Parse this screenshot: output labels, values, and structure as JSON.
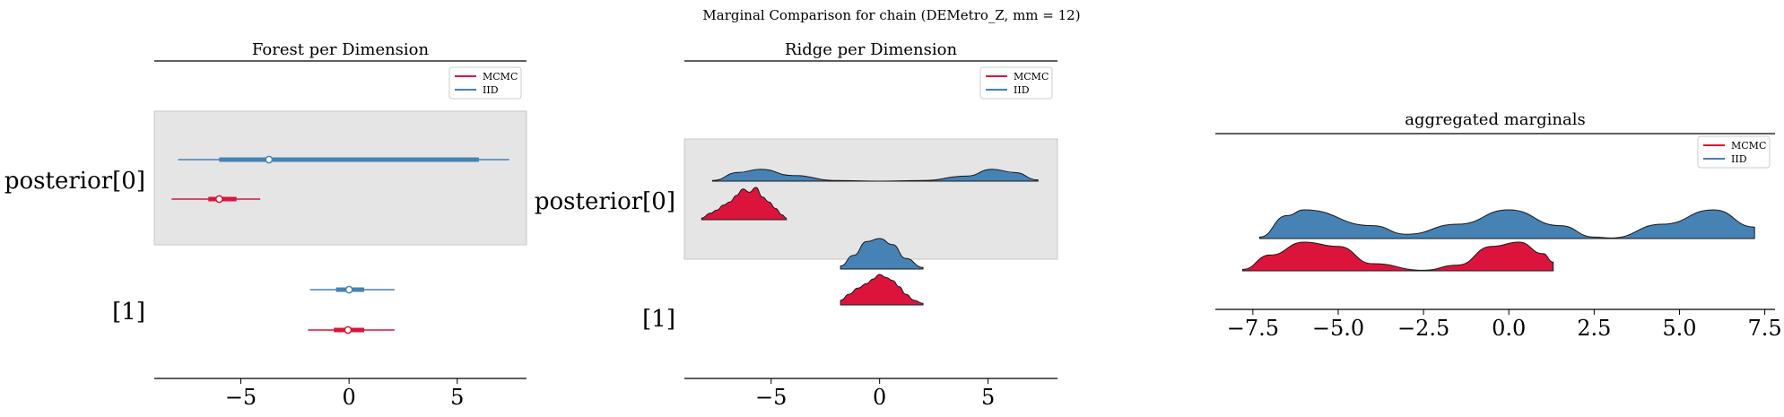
{
  "suptitle": "Marginal Comparison for chain (DEMetro_Z, mm = 12)",
  "colors": {
    "mcmc": "#dc143c",
    "iid": "#4682b4",
    "band": "#e5e5e5",
    "band_edge": "#c8c8c8"
  },
  "legend": [
    {
      "label": "MCMC",
      "color": "#dc143c"
    },
    {
      "label": "IID",
      "color": "#4682b4"
    }
  ],
  "chart_data": [
    {
      "type": "forest",
      "title": "Forest per Dimension",
      "xlim": [
        -9,
        8.2
      ],
      "xticks": [
        -5,
        0,
        5
      ],
      "xtick_labels": [
        "−5",
        "0",
        "5"
      ],
      "row_labels": [
        "posterior[0]",
        "[1]"
      ],
      "legend_position": "upper right",
      "rows": [
        {
          "label": "posterior[0]",
          "shaded": true,
          "series": {
            "IID": {
              "hdi94": [
                -7.9,
                7.4
              ],
              "hdi50": [
                -6.0,
                6.0
              ],
              "point": -3.7
            },
            "MCMC": {
              "hdi94": [
                -8.2,
                -4.1
              ],
              "hdi50": [
                -6.5,
                -5.2
              ],
              "point": -6.0
            }
          }
        },
        {
          "label": "[1]",
          "shaded": false,
          "series": {
            "IID": {
              "hdi94": [
                -1.8,
                2.1
              ],
              "hdi50": [
                -0.6,
                0.7
              ],
              "point": 0.0
            },
            "MCMC": {
              "hdi94": [
                -1.9,
                2.1
              ],
              "hdi50": [
                -0.7,
                0.7
              ],
              "point": -0.05
            }
          }
        }
      ]
    },
    {
      "type": "ridge",
      "title": "Ridge per Dimension",
      "xlim": [
        -9,
        8.2
      ],
      "xticks": [
        -5,
        0,
        5
      ],
      "xtick_labels": [
        "−5",
        "0",
        "5"
      ],
      "row_labels": [
        "posterior[0]",
        "[1]"
      ],
      "legend_position": "upper right",
      "rows": [
        {
          "label": "posterior[0]",
          "shaded": true,
          "series": {
            "IID": {
              "x": [
                -7.7,
                -6.5,
                -5.5,
                -4.0,
                -2.0,
                0.0,
                2.0,
                4.0,
                5.2,
                6.2,
                7.3
              ],
              "density": [
                0.05,
                0.7,
                0.95,
                0.45,
                0.05,
                0.0,
                0.05,
                0.4,
                0.95,
                0.7,
                0.1
              ]
            },
            "MCMC": {
              "x": [
                -8.2,
                -7.8,
                -7.5,
                -7.2,
                -6.9,
                -6.6,
                -6.3,
                -6.0,
                -5.7,
                -5.4,
                -5.1,
                -4.8,
                -4.5,
                -4.3
              ],
              "density": [
                0.05,
                0.2,
                0.3,
                0.45,
                0.55,
                0.75,
                0.95,
                0.85,
                1.0,
                0.7,
                0.55,
                0.35,
                0.15,
                0.05
              ]
            }
          }
        },
        {
          "label": "[1]",
          "shaded": false,
          "series": {
            "IID": {
              "x": [
                -1.8,
                -1.2,
                -0.6,
                0.0,
                0.6,
                1.2,
                2.0
              ],
              "density": [
                0.1,
                0.45,
                0.9,
                1.0,
                0.8,
                0.35,
                0.05
              ]
            },
            "MCMC": {
              "x": [
                -1.8,
                -1.4,
                -1.0,
                -0.6,
                -0.3,
                0.0,
                0.3,
                0.6,
                0.9,
                1.2,
                1.6,
                2.0
              ],
              "density": [
                0.15,
                0.35,
                0.55,
                0.7,
                0.85,
                1.0,
                0.9,
                0.8,
                0.6,
                0.35,
                0.15,
                0.05
              ]
            }
          }
        }
      ]
    },
    {
      "type": "ridge",
      "title": "aggregated marginals",
      "xlim": [
        -8.6,
        7.8
      ],
      "xticks": [
        -7.5,
        -5.0,
        -2.5,
        0.0,
        2.5,
        5.0,
        7.5
      ],
      "xtick_labels": [
        "−7.5",
        "−5.0",
        "−2.5",
        "0.0",
        "2.5",
        "5.0",
        "7.5"
      ],
      "legend_position": "upper right",
      "series": {
        "IID": {
          "x": [
            -7.3,
            -6.5,
            -6.0,
            -4.0,
            -3.0,
            -1.5,
            0.0,
            1.5,
            2.5,
            3.0,
            4.5,
            6.0,
            7.2
          ],
          "density": [
            0.05,
            0.8,
            1.0,
            0.45,
            0.15,
            0.5,
            1.0,
            0.45,
            0.05,
            0.02,
            0.5,
            1.0,
            0.4
          ]
        },
        "MCMC": {
          "x": [
            -7.8,
            -7.0,
            -6.0,
            -5.0,
            -4.0,
            -2.5,
            -1.5,
            -0.5,
            0.3,
            1.0,
            1.3
          ],
          "density": [
            0.05,
            0.55,
            1.0,
            0.85,
            0.25,
            0.02,
            0.2,
            0.85,
            1.0,
            0.6,
            0.3
          ]
        }
      }
    }
  ]
}
